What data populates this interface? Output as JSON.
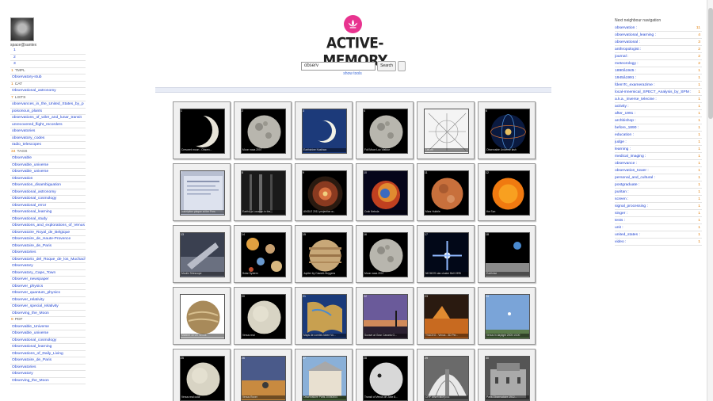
{
  "user": {
    "name": "space@santex"
  },
  "brand": {
    "title": "ACTIVE-MEMORY"
  },
  "search": {
    "value": "observ",
    "button": "Search",
    "tools_link": "show tools"
  },
  "left": {
    "pages": [
      "1",
      "2",
      "3"
    ],
    "sections": [
      {
        "count": "1",
        "label": "TMPL",
        "items": [
          "Observatory-stub"
        ]
      },
      {
        "count": "1",
        "label": "CAT",
        "items": [
          "Observational_astronomy"
        ]
      },
      {
        "count": "7",
        "label": "LISTS",
        "items": [
          "observances_in_the_United_States_by_p",
          "poisonous_plants",
          "observations_of_wiler_and_lunar_transit",
          "unrecovered_flight_recorders",
          "observatories",
          "observatory_codes",
          "radio_telescopes"
        ]
      },
      {
        "count": "34",
        "label": "TAGS",
        "items": [
          "Observable",
          "Observable_universe",
          "Observable_universe",
          "Observation",
          "Observation_disambiguation",
          "Observational_astronomy",
          "Observational_cosmology",
          "Observational_error",
          "Observational_learning",
          "Observational_study",
          "Observations_and_explorations_of_Venus",
          "Observatoire_Royal_de_Belgique",
          "Observatoire_de_Haute-Provence",
          "Observatoire_de_Paris",
          "Observatories",
          "Observatorio_del_Roque_de_los_Muchachos",
          "Observatory",
          "Observatory_Cape_Town",
          "Observer_newspaper",
          "Observer_physics",
          "Observer_quantum_physics",
          "Observer_relativity",
          "Observer_special_relativity",
          "Observing_the_Moon"
        ]
      },
      {
        "count": "9",
        "label": "PDF",
        "items": [
          "Observable_Universe",
          "Observable_universe",
          "Observational_cosmology",
          "Observational_learning",
          "Observations_of_Daily_Living",
          "Observatoire_de_Paris",
          "Observatories",
          "Observatory",
          "Observing_the_Moon"
        ]
      }
    ]
  },
  "grid": {
    "tiles": [
      {
        "idx": "1",
        "caption": "Crescent moon - Observ...",
        "art": "crescent"
      },
      {
        "idx": "2",
        "caption": "Moon nasa 2007",
        "art": "moon"
      },
      {
        "idx": "3",
        "caption": "Earthshine Kashiwa",
        "art": "crescent-blue"
      },
      {
        "idx": "4",
        "caption": "Full Moon Luc Viatour",
        "art": "moon"
      },
      {
        "idx": "5",
        "caption": "Lasoth",
        "art": "chart"
      },
      {
        "idx": "6",
        "caption": "Observable Universe lash",
        "art": "sphere"
      },
      {
        "idx": "7",
        "caption": "Inscription plaque at the Pres",
        "art": "plaque"
      },
      {
        "idx": "8",
        "caption": "Earth's a Location in the",
        "art": "dark-map"
      },
      {
        "idx": "9",
        "caption": "ANGLE 2011 projection w...",
        "art": "sphere-red"
      },
      {
        "idx": "10",
        "caption": "Crab Nebula",
        "art": "nebula"
      },
      {
        "idx": "11",
        "caption": "Mars Hubble",
        "art": "mars"
      },
      {
        "idx": "12",
        "caption": "the Sun",
        "art": "sun"
      },
      {
        "idx": "13",
        "caption": "Moulin Telescope",
        "art": "telescope"
      },
      {
        "idx": "14",
        "caption": "Solar System",
        "art": "solar"
      },
      {
        "idx": "15",
        "caption": "Jupiter by Cassini-Huygens",
        "art": "jupiter"
      },
      {
        "idx": "16",
        "caption": "Moon nasa 2007",
        "art": "moon"
      },
      {
        "idx": "17",
        "caption": "NICMOS star cluster Bell 1995",
        "art": "star"
      },
      {
        "idx": "18",
        "caption": "Earthrise",
        "art": "earthrise"
      },
      {
        "idx": "19",
        "caption": "Mariner 10 UV Venus",
        "art": "venus-brown"
      },
      {
        "idx": "20",
        "caption": "Venus real",
        "art": "venus-pale"
      },
      {
        "idx": "21",
        "caption": "Maps de comtes lobee Vo...",
        "art": "map"
      },
      {
        "idx": "22",
        "caption": "Sunset at Gran Canaria G...",
        "art": "sunset"
      },
      {
        "idx": "23",
        "caption": "TVACEO - Venus - 3D Per...",
        "art": "venus3d"
      },
      {
        "idx": "24",
        "caption": "Venus in daylight 2005 1/100",
        "art": "daylight"
      },
      {
        "idx": "25",
        "caption": "Venus real color",
        "art": "venus-pale"
      },
      {
        "idx": "26",
        "caption": "Venus Rover",
        "art": "field"
      },
      {
        "idx": "27",
        "caption": "Observatoire Paris 20050604",
        "art": "building"
      },
      {
        "idx": "28",
        "caption": "Transit of Venus on June 8...",
        "art": "transit"
      },
      {
        "idx": "29",
        "caption": "CHP observatory001",
        "art": "dome"
      },
      {
        "idx": "30",
        "caption": "Paris Observatoire 1912...",
        "art": "bw"
      }
    ]
  },
  "right": {
    "title": "Next neighbour navigation",
    "items": [
      {
        "label": "observation :",
        "count": "11"
      },
      {
        "label": "observational_learning :",
        "count": "4"
      },
      {
        "label": "observational :",
        "count": "3"
      },
      {
        "label": "anthropologist :",
        "count": "2"
      },
      {
        "label": "journal :",
        "count": "2"
      },
      {
        "label": "meteorology :",
        "count": "2"
      },
      {
        "label": "1890â1945 :",
        "count": "1"
      },
      {
        "label": "1945â1991 :",
        "count": "1"
      },
      {
        "label": "fdemTc_examerazime :",
        "count": "1"
      },
      {
        "label": "local-mnemical_SPECT_Analysis_by_SPM :",
        "count": "1"
      },
      {
        "label": "a.k.a._inverse_telecine :",
        "count": "1"
      },
      {
        "label": "activity :",
        "count": "1"
      },
      {
        "label": "after_1991 :",
        "count": "1"
      },
      {
        "label": "archbishop :",
        "count": "1"
      },
      {
        "label": "before_1890 :",
        "count": "1"
      },
      {
        "label": "education :",
        "count": "1"
      },
      {
        "label": "judge :",
        "count": "1"
      },
      {
        "label": "learning :",
        "count": "1"
      },
      {
        "label": "medical_imaging :",
        "count": "1"
      },
      {
        "label": "observance :",
        "count": "1"
      },
      {
        "label": "observation_tower :",
        "count": "1"
      },
      {
        "label": "personal_and_cultural :",
        "count": "1"
      },
      {
        "label": "postgraduate :",
        "count": "1"
      },
      {
        "label": "puritan :",
        "count": "1"
      },
      {
        "label": "screen :",
        "count": "1"
      },
      {
        "label": "signal_processing :",
        "count": "1"
      },
      {
        "label": "singer :",
        "count": "1"
      },
      {
        "label": "tests :",
        "count": "1"
      },
      {
        "label": "unit :",
        "count": "1"
      },
      {
        "label": "united_states :",
        "count": "1"
      },
      {
        "label": "video :",
        "count": "1"
      }
    ]
  },
  "colors": {
    "link": "#1a3fd0",
    "count": "#e07a00",
    "brand_icon": "#e8338f"
  }
}
